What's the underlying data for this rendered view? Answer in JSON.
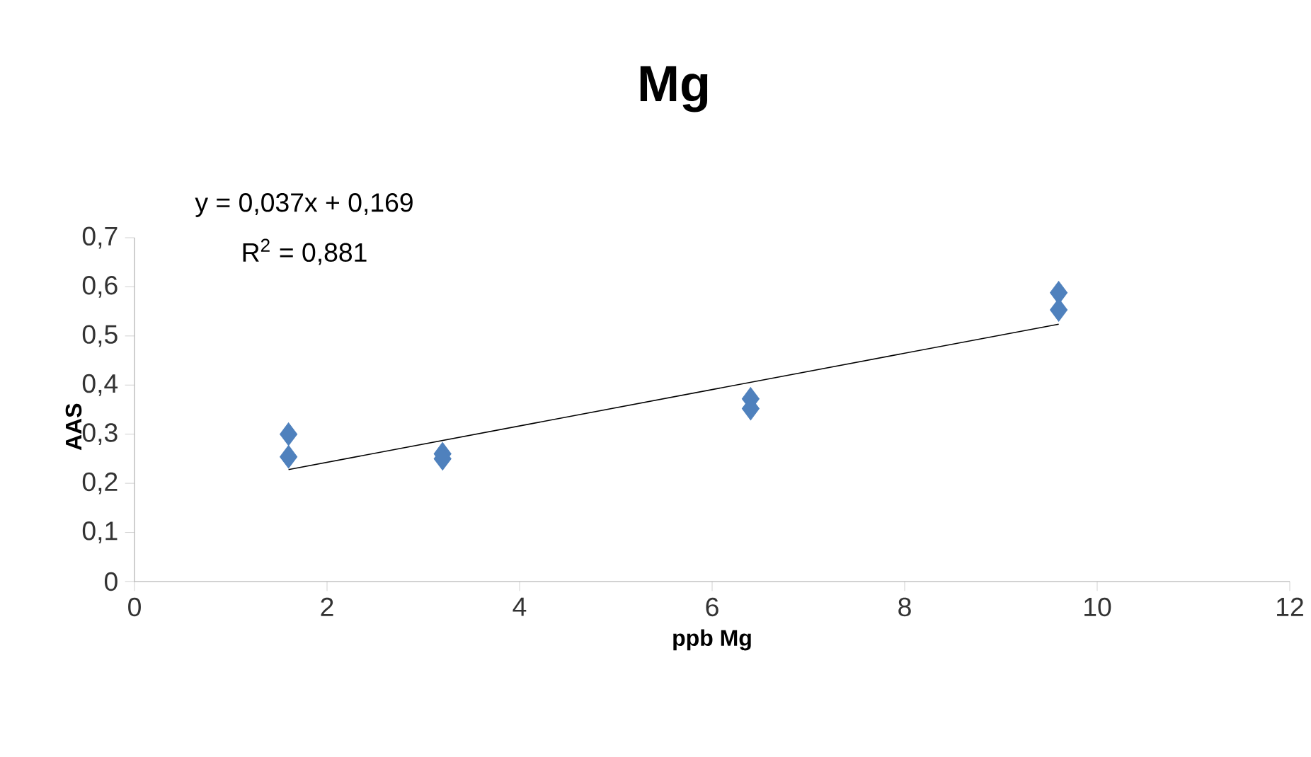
{
  "chart_data": {
    "type": "scatter",
    "title": "Mg",
    "xlabel": "ppb Mg",
    "ylabel": "AAS",
    "annotations": [
      "y = 0,037x + 0,169",
      "R$^{2}$ = 0,881"
    ],
    "series": [
      {
        "color": "#4f81bd",
        "x": [
          1.6,
          1.6,
          3.2,
          3.2,
          6.4,
          6.4,
          9.6,
          9.6
        ],
        "values": [
          0.3,
          0.254,
          0.26,
          0.25,
          0.372,
          0.352,
          0.588,
          0.553
        ]
      },
      {
        "type": "line",
        "marker": "none",
        "color": "#000000",
        "x": [
          1.6,
          9.6
        ],
        "values": [
          0.228,
          0.524
        ]
      }
    ],
    "marker": "diamond",
    "grid": false,
    "xlim": [
      0,
      12
    ],
    "xticks": [
      0,
      2,
      4,
      6,
      8,
      10,
      12
    ],
    "ylim": [
      0,
      0.7
    ],
    "yticks": [
      0,
      {
        "value": 0.1,
        "label": "0,1"
      },
      {
        "value": 0.2,
        "label": "0,2"
      },
      {
        "value": 0.3,
        "label": "0,3"
      },
      {
        "value": 0.4,
        "label": "0,4"
      },
      {
        "value": 0.5,
        "label": "0,5"
      },
      {
        "value": 0.6,
        "label": "0,6"
      },
      {
        "value": 0.7,
        "label": "0,7"
      }
    ]
  }
}
